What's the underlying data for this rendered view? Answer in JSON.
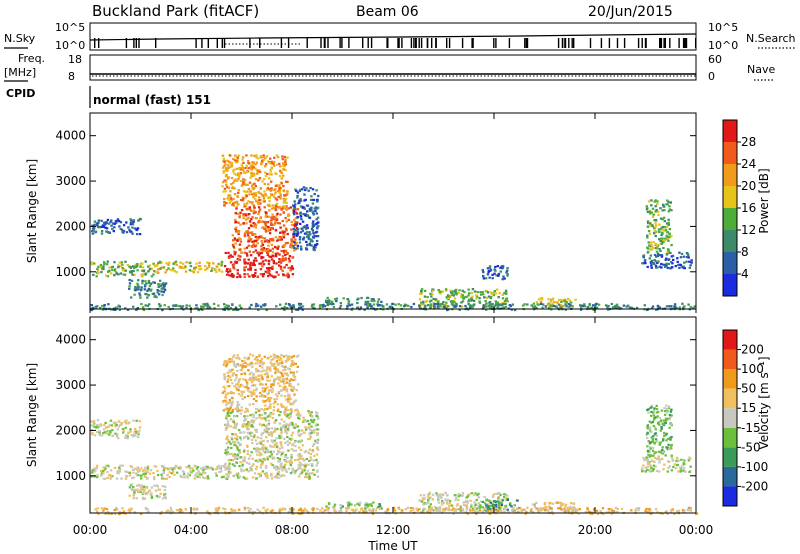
{
  "header": {
    "title": "Buckland Park (fitACF)",
    "beam": "Beam 06",
    "date": "20/Jun/2015"
  },
  "status_panels": {
    "nsky_label": "N.Sky",
    "nsky_ticks": [
      "10^5",
      "10^0"
    ],
    "nsearch_label": "N.Search",
    "nsearch_ticks": [
      "10^5",
      "10^0"
    ],
    "freq_label": "Freq.",
    "freq_unit": "[MHz]",
    "freq_ticks": [
      "18",
      "8"
    ],
    "nave_label": "Nave",
    "nave_ticks": [
      "60",
      "0"
    ],
    "cpid_label": "CPID",
    "cpid_value": "normal (fast) 151"
  },
  "chart_data": [
    {
      "type": "heatmap",
      "name": "power",
      "ylabel": "Slant Range [km]",
      "ylim": [
        180,
        4500
      ],
      "yticks": [
        1000,
        2000,
        3000,
        4000
      ],
      "xlim": [
        0,
        24
      ],
      "colorbar_label": "Power [dB]",
      "colorbar_ticks": [
        "4",
        "8",
        "12",
        "16",
        "20",
        "24",
        "28"
      ],
      "colorbar_colors": [
        "#1a2be0",
        "#2a5fa8",
        "#3b8a6a",
        "#4dab3a",
        "#e8c41a",
        "#f29a1c",
        "#f05a1a",
        "#e01818"
      ],
      "echo_regions": [
        {
          "t": [
            0.0,
            2.5
          ],
          "r": [
            920,
            1250
          ],
          "level": 3
        },
        {
          "t": [
            2.5,
            5.3
          ],
          "r": [
            1000,
            1250
          ],
          "level": 4
        },
        {
          "t": [
            5.3,
            8.0
          ],
          "r": [
            900,
            1450
          ],
          "level": 7
        },
        {
          "t": [
            5.6,
            8.2
          ],
          "r": [
            1450,
            2450
          ],
          "level": 6
        },
        {
          "t": [
            5.2,
            7.8
          ],
          "r": [
            2450,
            3600
          ],
          "level": 5
        },
        {
          "t": [
            0.0,
            2.0
          ],
          "r": [
            1850,
            2200
          ],
          "level": 1
        },
        {
          "t": [
            1.5,
            3.0
          ],
          "r": [
            450,
            850
          ],
          "level": 2
        },
        {
          "t": [
            8.0,
            9.0
          ],
          "r": [
            1500,
            2900
          ],
          "level": 1
        },
        {
          "t": [
            9.3,
            11.5
          ],
          "r": [
            300,
            450
          ],
          "level": 2
        },
        {
          "t": [
            13.0,
            16.5
          ],
          "r": [
            250,
            650
          ],
          "level": 3
        },
        {
          "t": [
            15.5,
            16.5
          ],
          "r": [
            850,
            1150
          ],
          "level": 1
        },
        {
          "t": [
            17.5,
            19.2
          ],
          "r": [
            250,
            450
          ],
          "level": 4
        },
        {
          "t": [
            21.8,
            23.8
          ],
          "r": [
            1100,
            1450
          ],
          "level": 1
        },
        {
          "t": [
            22.0,
            23.0
          ],
          "r": [
            1450,
            2600
          ],
          "level": 3
        },
        {
          "t": [
            0.0,
            24.0
          ],
          "r": [
            180,
            320
          ],
          "level": 2
        }
      ]
    },
    {
      "type": "heatmap",
      "name": "velocity",
      "ylabel": "Slant Range [km]",
      "ylim": [
        180,
        4500
      ],
      "yticks": [
        1000,
        2000,
        3000,
        4000
      ],
      "xlim": [
        0,
        24
      ],
      "colorbar_label": "Velocity [m s⁻¹]",
      "colorbar_ticks": [
        "200",
        "100",
        "50",
        "15",
        "-15",
        "-50",
        "-100",
        "-200"
      ],
      "colorbar_colors": [
        "#1a2be0",
        "#2a6a9a",
        "#3a9a5a",
        "#6ac03a",
        "#c8c8c0",
        "#f0c060",
        "#f09a1c",
        "#f05a1a",
        "#e01818"
      ],
      "echo_regions": [
        {
          "t": [
            0.0,
            5.3
          ],
          "r": [
            950,
            1250
          ],
          "level": 4
        },
        {
          "t": [
            0.0,
            2.0
          ],
          "r": [
            1850,
            2250
          ],
          "level": 4
        },
        {
          "t": [
            5.3,
            9.0
          ],
          "r": [
            950,
            2450
          ],
          "level": 4
        },
        {
          "t": [
            5.2,
            8.2
          ],
          "r": [
            2450,
            3700
          ],
          "level": 5
        },
        {
          "t": [
            1.5,
            3.0
          ],
          "r": [
            500,
            850
          ],
          "level": 4
        },
        {
          "t": [
            9.3,
            11.5
          ],
          "r": [
            300,
            450
          ],
          "level": 3
        },
        {
          "t": [
            13.0,
            16.5
          ],
          "r": [
            250,
            650
          ],
          "level": 4
        },
        {
          "t": [
            15.5,
            17.0
          ],
          "r": [
            250,
            500
          ],
          "level": 2
        },
        {
          "t": [
            17.5,
            19.2
          ],
          "r": [
            250,
            450
          ],
          "level": 5
        },
        {
          "t": [
            21.8,
            23.8
          ],
          "r": [
            1100,
            1450
          ],
          "level": 4
        },
        {
          "t": [
            22.0,
            23.0
          ],
          "r": [
            1450,
            2600
          ],
          "level": 3
        },
        {
          "t": [
            0.0,
            24.0
          ],
          "r": [
            180,
            320
          ],
          "level": 5
        }
      ]
    }
  ],
  "xaxis": {
    "ticks": [
      "00:00",
      "04:00",
      "08:00",
      "12:00",
      "16:00",
      "20:00",
      "00:00"
    ],
    "label": "Time UT"
  }
}
